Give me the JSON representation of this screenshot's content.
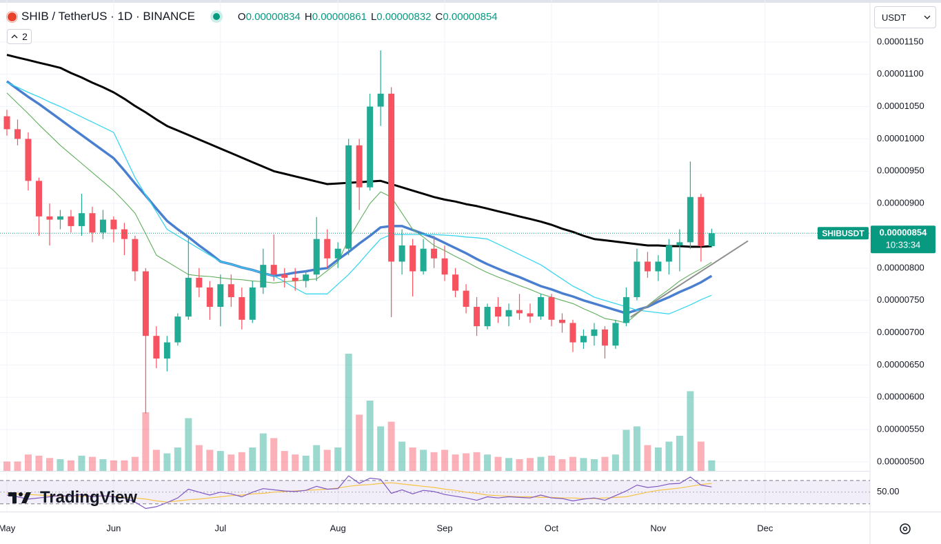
{
  "header": {
    "title": "SHIB / TetherUS · 1D · BINANCE",
    "ohlc": [
      {
        "key": "O",
        "value": "0.00000834"
      },
      {
        "key": "H",
        "value": "0.00000861"
      },
      {
        "key": "L",
        "value": "0.00000832"
      },
      {
        "key": "C",
        "value": "0.00000854"
      }
    ]
  },
  "indicators": "2",
  "currency": "USDT",
  "logo": "TradingView",
  "chart_data": {
    "type": "candlestick",
    "categories": [
      "May",
      null,
      null,
      null,
      null,
      null,
      null,
      null,
      null,
      null,
      "Jun",
      null,
      null,
      null,
      null,
      null,
      null,
      null,
      null,
      null,
      "Jul",
      null,
      null,
      null,
      null,
      null,
      null,
      null,
      null,
      null,
      null,
      "Aug",
      null,
      null,
      null,
      null,
      null,
      null,
      null,
      null,
      null,
      "Sep",
      null,
      null,
      null,
      null,
      null,
      null,
      null,
      null,
      null,
      "Oct",
      null,
      null,
      null,
      null,
      null,
      null,
      null,
      null,
      null,
      "Nov",
      null,
      null,
      null,
      null,
      null,
      null,
      null,
      null,
      null,
      "Dec"
    ],
    "ohlc": [
      [
        1.035e-05,
        1.045e-05,
        1.005e-05,
        1.015e-05
      ],
      [
        1.015e-05,
        1.03e-05,
        9.9e-06,
        1e-05
      ],
      [
        1e-05,
        1.01e-05,
        9.2e-06,
        9.35e-06
      ],
      [
        9.35e-06,
        9.4e-06,
        8.5e-06,
        8.8e-06
      ],
      [
        8.8e-06,
        9e-06,
        8.35e-06,
        8.75e-06
      ],
      [
        8.75e-06,
        8.9e-06,
        8.6e-06,
        8.8e-06
      ],
      [
        8.8e-06,
        8.9e-06,
        8.55e-06,
        8.65e-06
      ],
      [
        8.65e-06,
        9.15e-06,
        8.5e-06,
        8.85e-06
      ],
      [
        8.85e-06,
        8.95e-06,
        8.4e-06,
        8.55e-06
      ],
      [
        8.55e-06,
        8.9e-06,
        8.45e-06,
        8.75e-06
      ],
      [
        8.75e-06,
        8.8e-06,
        8.4e-06,
        8.6e-06
      ],
      [
        8.6e-06,
        8.7e-06,
        8.2e-06,
        8.45e-06
      ],
      [
        8.45e-06,
        8.5e-06,
        7.8e-06,
        7.95e-06
      ],
      [
        7.95e-06,
        8e-06,
        5.75e-06,
        6.95e-06
      ],
      [
        6.95e-06,
        7.1e-06,
        6.45e-06,
        6.6e-06
      ],
      [
        6.6e-06,
        6.95e-06,
        6.4e-06,
        6.85e-06
      ],
      [
        6.85e-06,
        7.3e-06,
        6.8e-06,
        7.25e-06
      ],
      [
        7.25e-06,
        8.47e-06,
        7.2e-06,
        7.85e-06
      ],
      [
        7.85e-06,
        8e-06,
        7.55e-06,
        7.7e-06
      ],
      [
        7.7e-06,
        7.8e-06,
        7.2e-06,
        7.4e-06
      ],
      [
        7.4e-06,
        7.9e-06,
        7.1e-06,
        7.75e-06
      ],
      [
        7.75e-06,
        7.9e-06,
        7.4e-06,
        7.55e-06
      ],
      [
        7.55e-06,
        7.7e-06,
        7.05e-06,
        7.2e-06
      ],
      [
        7.2e-06,
        7.8e-06,
        7.15e-06,
        7.7e-06
      ],
      [
        7.7e-06,
        8.3e-06,
        7.6e-06,
        8.05e-06
      ],
      [
        8.05e-06,
        8.52e-06,
        7.8e-06,
        7.9e-06
      ],
      [
        7.9e-06,
        8e-06,
        7.7e-06,
        7.85e-06
      ],
      [
        7.85e-06,
        8e-06,
        7.65e-06,
        7.8e-06
      ],
      [
        7.8e-06,
        7.95e-06,
        7.7e-06,
        7.9e-06
      ],
      [
        7.9e-06,
        8.79e-06,
        7.8e-06,
        8.45e-06
      ],
      [
        8.45e-06,
        8.6e-06,
        8e-06,
        8.15e-06
      ],
      [
        8.15e-06,
        8.4e-06,
        8e-06,
        8.3e-06
      ],
      [
        8.3e-06,
        1e-05,
        8.2e-06,
        9.9e-06
      ],
      [
        9.9e-06,
        1e-05,
        8.9e-06,
        9.25e-06
      ],
      [
        9.25e-06,
        1.07e-05,
        9.2e-06,
        1.05e-05
      ],
      [
        1.05e-05,
        1.137e-05,
        1.02e-05,
        1.07e-05
      ],
      [
        1.07e-05,
        1.08e-05,
        7.24e-06,
        8.1e-06
      ],
      [
        8.1e-06,
        8.6e-06,
        7.9e-06,
        8.35e-06
      ],
      [
        8.35e-06,
        8.45e-06,
        7.56e-06,
        7.95e-06
      ],
      [
        7.95e-06,
        8.45e-06,
        7.9e-06,
        8.3e-06
      ],
      [
        8.3e-06,
        8.5e-06,
        8e-06,
        8.15e-06
      ],
      [
        8.15e-06,
        8.35e-06,
        7.8e-06,
        7.9e-06
      ],
      [
        7.9e-06,
        8e-06,
        7.55e-06,
        7.65e-06
      ],
      [
        7.65e-06,
        7.75e-06,
        7.3e-06,
        7.4e-06
      ],
      [
        7.4e-06,
        7.55e-06,
        6.95e-06,
        7.1e-06
      ],
      [
        7.1e-06,
        7.45e-06,
        7.05e-06,
        7.4e-06
      ],
      [
        7.4e-06,
        7.55e-06,
        7.15e-06,
        7.25e-06
      ],
      [
        7.25e-06,
        7.45e-06,
        7.1e-06,
        7.35e-06
      ],
      [
        7.35e-06,
        7.6e-06,
        7.2e-06,
        7.3e-06
      ],
      [
        7.3e-06,
        7.45e-06,
        7.15e-06,
        7.25e-06
      ],
      [
        7.25e-06,
        7.6e-06,
        7.2e-06,
        7.55e-06
      ],
      [
        7.55e-06,
        7.6e-06,
        7.1e-06,
        7.2e-06
      ],
      [
        7.2e-06,
        7.3e-06,
        7e-06,
        7.15e-06
      ],
      [
        7.15e-06,
        7.2e-06,
        6.7e-06,
        6.85e-06
      ],
      [
        6.85e-06,
        7.05e-06,
        6.75e-06,
        6.95e-06
      ],
      [
        6.95e-06,
        7.15e-06,
        6.8e-06,
        7.05e-06
      ],
      [
        7.05e-06,
        7.1e-06,
        6.6e-06,
        6.8e-06
      ],
      [
        6.8e-06,
        7.2e-06,
        6.75e-06,
        7.15e-06
      ],
      [
        7.15e-06,
        7.7e-06,
        7.1e-06,
        7.55e-06
      ],
      [
        7.55e-06,
        8.3e-06,
        7.5e-06,
        8.1e-06
      ],
      [
        8.1e-06,
        8.25e-06,
        7.85e-06,
        7.95e-06
      ],
      [
        7.95e-06,
        8.2e-06,
        7.8e-06,
        8.1e-06
      ],
      [
        8.1e-06,
        8.45e-06,
        7.9e-06,
        8.35e-06
      ],
      [
        8.35e-06,
        8.6e-06,
        7.95e-06,
        8.4e-06
      ],
      [
        8.4e-06,
        9.65e-06,
        8.3e-06,
        9.1e-06
      ],
      [
        9.1e-06,
        9.15e-06,
        8.1e-06,
        8.34e-06
      ],
      [
        8.34e-06,
        8.61e-06,
        8.32e-06,
        8.54e-06
      ],
      null,
      null,
      null,
      null,
      null
    ],
    "up_color": "#22ab94",
    "down_color": "#f7525f",
    "ylim": [
      4.86e-06,
      1.215e-05
    ],
    "yticks": [
      {
        "value": 5e-06,
        "label": "0.00000500"
      },
      {
        "value": 5.5e-06,
        "label": "0.00000550"
      },
      {
        "value": 6e-06,
        "label": "0.00000600"
      },
      {
        "value": 6.5e-06,
        "label": "0.00000650"
      },
      {
        "value": 7e-06,
        "label": "0.00000700"
      },
      {
        "value": 7.5e-06,
        "label": "0.00000750"
      },
      {
        "value": 8e-06,
        "label": "0.00000800"
      },
      {
        "value": 8.5e-06,
        "label": "0.00000850"
      },
      {
        "value": 9e-06,
        "label": "0.00000900"
      },
      {
        "value": 9.5e-06,
        "label": "0.00000950"
      },
      {
        "value": 1e-05,
        "label": "0.00001000"
      },
      {
        "value": 1.05e-05,
        "label": "0.00001050"
      },
      {
        "value": 1.1e-05,
        "label": "0.00001100"
      },
      {
        "value": 1.15e-05,
        "label": "0.00001150"
      }
    ],
    "grid": true,
    "overlays": [
      {
        "color": "#000000",
        "width": 3,
        "values": [
          1.13e-05,
          1.126e-05,
          1.122e-05,
          1.118e-05,
          1.114e-05,
          1.11e-05,
          1.102e-05,
          1.095e-05,
          1.087e-05,
          1.08e-05,
          1.072e-05,
          1.062e-05,
          1.051e-05,
          1.041e-05,
          1.03e-05,
          1.02e-05,
          1.013e-05,
          1.006e-05,
          9.99e-06,
          9.92e-06,
          9.85e-06,
          9.78e-06,
          9.71e-06,
          9.64e-06,
          9.57e-06,
          9.5e-06,
          9.46e-06,
          9.42e-06,
          9.38e-06,
          9.34e-06,
          9.3e-06,
          9.31e-06,
          9.32e-06,
          9.33e-06,
          9.34e-06,
          9.35e-06,
          9.3e-06,
          9.25e-06,
          9.2e-06,
          9.15e-06,
          9.1e-06,
          9.06e-06,
          9.03e-06,
          8.99e-06,
          8.96e-06,
          8.92e-06,
          8.88e-06,
          8.84e-06,
          8.8e-06,
          8.76e-06,
          8.72e-06,
          8.67e-06,
          8.61e-06,
          8.56e-06,
          8.5e-06,
          8.45e-06,
          8.43e-06,
          8.41e-06,
          8.39e-06,
          8.37e-06,
          8.35e-06,
          8.35e-06,
          8.34e-06,
          8.34e-06,
          8.33e-06,
          8.33e-06,
          8.34e-06,
          null,
          null,
          null,
          null,
          null
        ]
      },
      {
        "color": "#4a7fd0",
        "width": 3.5,
        "values": [
          1.089e-05,
          1.077e-05,
          1.065e-05,
          1.054e-05,
          1.042e-05,
          1.03e-05,
          1.018e-05,
          1.006e-05,
          9.94e-06,
          9.82e-06,
          9.7e-06,
          9.51e-06,
          9.31e-06,
          9.12e-06,
          8.92e-06,
          8.73e-06,
          8.6e-06,
          8.48e-06,
          8.35e-06,
          8.23e-06,
          8.1e-06,
          8.06e-06,
          8.01e-06,
          7.97e-06,
          7.92e-06,
          7.88e-06,
          7.9e-06,
          7.93e-06,
          7.95e-06,
          7.98e-06,
          8e-06,
          8.13e-06,
          8.25e-06,
          8.38e-06,
          8.5e-06,
          8.63e-06,
          8.65e-06,
          8.65e-06,
          8.59e-06,
          8.53e-06,
          8.47e-06,
          8.39e-06,
          8.31e-06,
          8.23e-06,
          8.14e-06,
          8.06e-06,
          7.99e-06,
          7.92e-06,
          7.86e-06,
          7.79e-06,
          7.72e-06,
          7.67e-06,
          7.61e-06,
          7.56e-06,
          7.5e-06,
          7.45e-06,
          7.4e-06,
          7.35e-06,
          7.3e-06,
          7.35e-06,
          7.4e-06,
          7.48e-06,
          7.55e-06,
          7.63e-06,
          7.7e-06,
          7.78e-06,
          7.88e-06,
          null,
          null,
          null,
          null,
          null
        ]
      },
      {
        "color": "#38d6ef",
        "width": 1.3,
        "values": [
          1.087e-05,
          1.08e-05,
          1.072e-05,
          1.065e-05,
          1.057e-05,
          1.05e-05,
          1.042e-05,
          1.034e-05,
          1.026e-05,
          1.018e-05,
          1.01e-05,
          9.75e-06,
          9.4e-06,
          9.13e-06,
          8.87e-06,
          8.6e-06,
          8.5e-06,
          8.4e-06,
          8.3e-06,
          8.2e-06,
          8.1e-06,
          8.06e-06,
          8.01e-06,
          7.97e-06,
          7.92e-06,
          7.88e-06,
          7.79e-06,
          7.69e-06,
          7.6e-06,
          7.6e-06,
          7.6e-06,
          7.75e-06,
          7.9e-06,
          8.08e-06,
          8.27e-06,
          8.45e-06,
          8.52e-06,
          8.52e-06,
          8.52e-06,
          8.52e-06,
          8.52e-06,
          8.51e-06,
          8.5e-06,
          8.48e-06,
          8.47e-06,
          8.45e-06,
          8.37e-06,
          8.29e-06,
          8.21e-06,
          8.13e-06,
          8.05e-06,
          7.94e-06,
          7.83e-06,
          7.72e-06,
          7.64e-06,
          7.55e-06,
          7.5e-06,
          7.45e-06,
          7.4e-06,
          7.35e-06,
          7.33e-06,
          7.31e-06,
          7.29e-06,
          7.36e-06,
          7.43e-06,
          7.51e-06,
          7.58e-06,
          null,
          null,
          null,
          null,
          null
        ]
      },
      {
        "color": "#5fae5a",
        "width": 1.1,
        "values": [
          1.071e-05,
          1.055e-05,
          1.039e-05,
          1.022e-05,
          1.006e-05,
          9.9e-06,
          9.76e-06,
          9.62e-06,
          9.48e-06,
          9.34e-06,
          9.2e-06,
          9.03e-06,
          8.85e-06,
          8.53e-06,
          8.2e-06,
          8.1e-06,
          8e-06,
          7.9e-06,
          7.88e-06,
          7.87e-06,
          7.85e-06,
          7.83e-06,
          7.82e-06,
          7.8e-06,
          7.79e-06,
          7.77e-06,
          7.79e-06,
          7.8e-06,
          7.82e-06,
          7.83e-06,
          7.96e-06,
          8.09e-06,
          8.45e-06,
          8.73e-06,
          9e-06,
          9.18e-06,
          9.1e-06,
          8.85e-06,
          8.6e-06,
          8.48e-06,
          8.35e-06,
          8.27e-06,
          8.18e-06,
          8.1e-06,
          8.01e-06,
          7.93e-06,
          7.86e-06,
          7.8e-06,
          7.73e-06,
          7.67e-06,
          7.6e-06,
          7.55e-06,
          7.5e-06,
          7.45e-06,
          7.37e-06,
          7.3e-06,
          7.22e-06,
          7.19e-06,
          7.15e-06,
          7.29e-06,
          7.42e-06,
          7.55e-06,
          7.67e-06,
          7.8e-06,
          7.9e-06,
          7.99e-06,
          8.09e-06,
          null,
          null,
          null,
          null,
          null
        ]
      }
    ],
    "volume": {
      "ylim": [
        0,
        100
      ],
      "values": [
        8,
        8,
        14,
        13,
        11,
        10,
        9,
        13,
        12,
        10,
        9,
        9,
        12,
        50,
        18,
        15,
        20,
        45,
        22,
        18,
        17,
        14,
        16,
        20,
        32,
        28,
        17,
        14,
        13,
        22,
        18,
        20,
        100,
        48,
        60,
        38,
        42,
        25,
        20,
        18,
        16,
        18,
        14,
        15,
        16,
        14,
        12,
        11,
        10,
        11,
        12,
        13,
        10,
        12,
        11,
        10,
        12,
        14,
        35,
        38,
        22,
        20,
        25,
        30,
        68,
        25,
        9,
        null,
        null,
        null,
        null,
        null
      ]
    },
    "rsi": {
      "ylim": [
        19,
        84
      ],
      "yticks": [
        {
          "value": 50,
          "label": "50.00"
        }
      ],
      "bands": [
        30,
        70
      ],
      "series": [
        {
          "color": "#7e57c2",
          "values": [
            45,
            42,
            38,
            40,
            42,
            44,
            43,
            46,
            42,
            44,
            42,
            40,
            33,
            22,
            25,
            32,
            40,
            55,
            50,
            45,
            50,
            47,
            42,
            50,
            56,
            54,
            52,
            51,
            53,
            60,
            55,
            56,
            78,
            65,
            74,
            72,
            48,
            54,
            47,
            53,
            51,
            46,
            43,
            40,
            36,
            42,
            40,
            42,
            41,
            40,
            45,
            40,
            39,
            35,
            38,
            40,
            36,
            44,
            52,
            62,
            58,
            60,
            64,
            65,
            76,
            62,
            59,
            null,
            null,
            null,
            null,
            null
          ]
        },
        {
          "color": "#f5c242",
          "values": [
            48,
            47,
            46,
            45,
            44,
            43,
            43,
            43,
            43,
            43,
            43,
            41,
            40,
            38,
            35,
            33,
            35,
            37,
            38,
            40,
            42,
            44,
            45,
            47,
            48,
            50,
            51,
            52,
            53,
            54,
            55,
            57,
            60,
            62,
            63,
            65,
            66,
            64,
            62,
            60,
            58,
            55,
            53,
            50,
            48,
            45,
            44,
            43,
            42,
            42,
            41,
            41,
            40,
            40,
            39,
            39,
            40,
            41,
            42,
            46,
            50,
            53,
            55,
            57,
            60,
            63,
            65,
            null,
            null,
            null,
            null,
            null
          ]
        }
      ]
    },
    "last_price": {
      "symbol": "SHIBUSDT",
      "value": 8.54e-06,
      "label": "0.00000854",
      "countdown": "10:33:34",
      "color": "#089981"
    },
    "trendline": {
      "color": "#8f8f8f",
      "from": [
        58.4,
        7.24e-06
      ],
      "to": [
        69.4,
        8.42e-06
      ]
    }
  }
}
